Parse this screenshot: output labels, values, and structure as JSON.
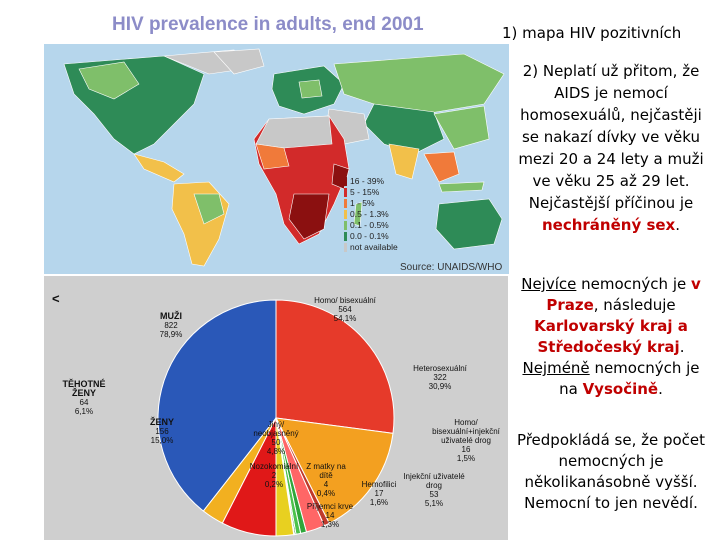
{
  "map": {
    "title": "HIV prevalence in adults, end 2001",
    "source": "Source: UNAIDS/WHO",
    "legend": [
      {
        "label": "16 - 39%",
        "color": "#8b1010"
      },
      {
        "label": "5 - 15%",
        "color": "#d22a2a"
      },
      {
        "label": "1 - 5%",
        "color": "#f07a3a"
      },
      {
        "label": "0.5 - 1.3%",
        "color": "#f2c04a"
      },
      {
        "label": "0.1 - 0.5%",
        "color": "#7fbf6a"
      },
      {
        "label": "0.0 - 0.1%",
        "color": "#2e8b57"
      },
      {
        "label": "not available",
        "color": "#c8c8c8"
      }
    ]
  },
  "text": {
    "p1": "1) mapa HIV pozitivních",
    "p2_a": "2) Neplatí už přitom, že AIDS je nemocí homosexuálů, nejčastěji se nakazí dívky ve věku mezi 20 a 24 lety a muži ve věku 25 až 29 let. Nejčastější příčinou je ",
    "p2_b": "nechráněný sex",
    "p2_c": ".",
    "p3_a": "Nejvíce",
    "p3_b": " nemocných je ",
    "p3_c": "v Praze",
    "p3_d": ", následuje ",
    "p3_e": "Karlovarský kraj a Středočeský kraj",
    "p3_f": ". ",
    "p3_g": "Nejméně",
    "p3_h": " nemocných je na ",
    "p3_i": "Vysočině",
    "p3_j": ".",
    "p4": "Předpokládá se, že počet nemocných je několikanásobně vyšší. Nemocní to jen nevědí."
  },
  "pie": {
    "back": "<",
    "slices": [
      {
        "name": "MUŽI",
        "count": "822",
        "pct": "78,9%",
        "color": "#2a58b8",
        "value": 78.9
      },
      {
        "name": "TĚHOTNÉ ŽENY",
        "count": "64",
        "pct": "6,1%",
        "color": "#f2b020",
        "value": 6.1
      },
      {
        "name": "ŽENY",
        "count": "156",
        "pct": "15,0%",
        "color": "#e01818",
        "value": 15.0
      }
    ],
    "right_slices": [
      {
        "name": "Homo/ bisexuální",
        "count": "564",
        "pct": "54,1%",
        "color": "#e63a2a",
        "value": 54.1
      },
      {
        "name": "Heterosexuální",
        "count": "322",
        "pct": "30,9%",
        "color": "#f3a020",
        "value": 30.9
      },
      {
        "name": "Homo/ bisexuální+injekční uživatelé drog",
        "count": "16",
        "pct": "1,5%",
        "color": "#c0392b",
        "value": 1.5
      },
      {
        "name": "Injekční uživatelé drog",
        "count": "53",
        "pct": "5,1%",
        "color": "#ff6666",
        "value": 5.1
      },
      {
        "name": "Hemofilici",
        "count": "17",
        "pct": "1,6%",
        "color": "#2fa63a",
        "value": 1.6
      },
      {
        "name": "Příjemci krve",
        "count": "14",
        "pct": "1,3%",
        "color": "#4cc24c",
        "value": 1.3
      },
      {
        "name": "Z matky na dítě",
        "count": "4",
        "pct": "0,4%",
        "color": "#1e7a2a",
        "value": 0.4
      },
      {
        "name": "Nozokomiální",
        "count": "2",
        "pct": "0,2%",
        "color": "#6d3a9a",
        "value": 0.2
      },
      {
        "name": "Jiný/ neobjasněný",
        "count": "50",
        "pct": "4,8%",
        "color": "#e8d020",
        "value": 4.8
      }
    ]
  }
}
